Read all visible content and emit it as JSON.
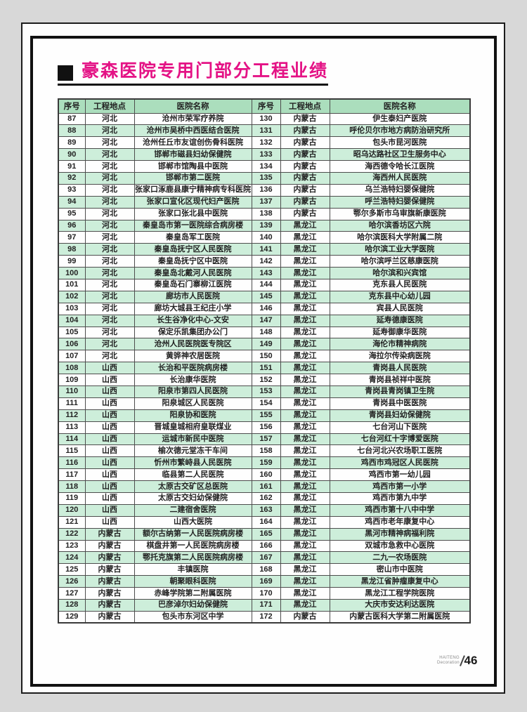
{
  "doc": {
    "title": "豪森医院专用门部分工程业绩",
    "footer": {
      "brand_top": "HAITENG",
      "brand_bottom": "Decoration",
      "page_number": "46"
    }
  },
  "colors": {
    "title": "#e41285",
    "header_bg": "#abdebd",
    "alt_row_bg": "#cdeeda",
    "frame": "#111111"
  },
  "table": {
    "headers": [
      "序号",
      "工程地点",
      "医院名称",
      "序号",
      "工程地点",
      "医院名称"
    ],
    "rows": [
      [
        "87",
        "河北",
        "沧州市荣军疗养院",
        "130",
        "内蒙古",
        "伊生泰妇产医院"
      ],
      [
        "88",
        "河北",
        "沧州市吴桥中西医结合医院",
        "131",
        "内蒙古",
        "呼伦贝尔市地方病防治研究所"
      ],
      [
        "89",
        "河北",
        "沧州任丘市友谊创伤骨科医院",
        "132",
        "内蒙古",
        "包头市昆河医院"
      ],
      [
        "90",
        "河北",
        "邯郸市磁县妇幼保健院",
        "133",
        "内蒙古",
        "昭乌达路社区卫生服务中心"
      ],
      [
        "91",
        "河北",
        "邯郸市馆陶县中医院",
        "134",
        "内蒙古",
        "海西德令哈长江医院"
      ],
      [
        "92",
        "河北",
        "邯郸市第二医院",
        "135",
        "内蒙古",
        "海西州人民医院"
      ],
      [
        "93",
        "河北",
        "张家口涿鹿县康宁精神病专科医院",
        "136",
        "内蒙古",
        "乌兰浩特妇婴保健院"
      ],
      [
        "94",
        "河北",
        "张家口宣化区现代妇产医院",
        "137",
        "内蒙古",
        "呼兰浩特妇婴保健院"
      ],
      [
        "95",
        "河北",
        "张家口张北县中医院",
        "138",
        "内蒙古",
        "鄂尔多斯市乌审旗新康医院"
      ],
      [
        "96",
        "河北",
        "秦皇岛市第一医院综合病房楼",
        "139",
        "黑龙江",
        "哈尔滨香坊区六院"
      ],
      [
        "97",
        "河北",
        "秦皇岛军工医院",
        "140",
        "黑龙江",
        "哈尔滨医科大学附属二院"
      ],
      [
        "98",
        "河北",
        "秦皇岛抚宁区人民医院",
        "141",
        "黑龙江",
        "哈尔滨工业大学医院"
      ],
      [
        "99",
        "河北",
        "秦皇岛抚宁区中医院",
        "142",
        "黑龙江",
        "哈尔滨呼兰区慈康医院"
      ],
      [
        "100",
        "河北",
        "秦皇岛北戴河人民医院",
        "143",
        "黑龙江",
        "哈尔滨和兴宾馆"
      ],
      [
        "101",
        "河北",
        "秦皇岛石门寨柳江医院",
        "144",
        "黑龙江",
        "克东县人民医院"
      ],
      [
        "102",
        "河北",
        "廊坊市人民医院",
        "145",
        "黑龙江",
        "克东县中心幼儿园"
      ],
      [
        "103",
        "河北",
        "廊坊大城县王纪庄小学",
        "146",
        "黑龙江",
        "宾县人民医院"
      ],
      [
        "104",
        "河北",
        "长生谷净化中心-文安",
        "147",
        "黑龙江",
        "延寿德康医院"
      ],
      [
        "105",
        "河北",
        "保定乐凯集团办公门",
        "148",
        "黑龙江",
        "延寿御康华医院"
      ],
      [
        "106",
        "河北",
        "沧州人民医院医专院区",
        "149",
        "黑龙江",
        "海伦市精神病院"
      ],
      [
        "107",
        "河北",
        "黄骅神农居医院",
        "150",
        "黑龙江",
        "海拉尔传染病医院"
      ],
      [
        "108",
        "山西",
        "长治和平医院病房楼",
        "151",
        "黑龙江",
        "青岗县人民医院"
      ],
      [
        "109",
        "山西",
        "长治康华医院",
        "152",
        "黑龙江",
        "青岗县祯祥中医院"
      ],
      [
        "110",
        "山西",
        "阳泉市第四人民医院",
        "153",
        "黑龙江",
        "青岗县青岗镇卫生院"
      ],
      [
        "111",
        "山西",
        "阳泉城区人民医院",
        "154",
        "黑龙江",
        "青岗县中医医院"
      ],
      [
        "112",
        "山西",
        "阳泉协和医院",
        "155",
        "黑龙江",
        "青岗县妇幼保健院"
      ],
      [
        "113",
        "山西",
        "晋城皇城相府皇联煤业",
        "156",
        "黑龙江",
        "七台河山下医院"
      ],
      [
        "114",
        "山西",
        "运城市新民中医院",
        "157",
        "黑龙江",
        "七台河红十字博爱医院"
      ],
      [
        "115",
        "山西",
        "榆次德元堂冻干车间",
        "158",
        "黑龙江",
        "七台河北兴农场职工医院"
      ],
      [
        "116",
        "山西",
        "忻州市繁峙县人民医院",
        "159",
        "黑龙江",
        "鸡西市鸡冠区人民医院"
      ],
      [
        "117",
        "山西",
        "临县第二人民医院",
        "160",
        "黑龙江",
        "鸡西市第一幼儿园"
      ],
      [
        "118",
        "山西",
        "太原古交矿区总医院",
        "161",
        "黑龙江",
        "鸡西市第一小学"
      ],
      [
        "119",
        "山西",
        "太原古交妇幼保健院",
        "162",
        "黑龙江",
        "鸡西市第九中学"
      ],
      [
        "120",
        "山西",
        "二建宿舍医院",
        "163",
        "黑龙江",
        "鸡西市第十八中中学"
      ],
      [
        "121",
        "山西",
        "山西大医院",
        "164",
        "黑龙江",
        "鸡西市老年康复中心"
      ],
      [
        "122",
        "内蒙古",
        "额尔古纳第一人民医院病房楼",
        "165",
        "黑龙江",
        "黑河市精神病福利院"
      ],
      [
        "123",
        "内蒙古",
        "棋盘井第一人民医院病房楼",
        "166",
        "黑龙江",
        "双城市急救中心医院"
      ],
      [
        "124",
        "内蒙古",
        "鄂托克旗第二人民医院病房楼",
        "167",
        "黑龙江",
        "二九一农场医院"
      ],
      [
        "125",
        "内蒙古",
        "丰镇医院",
        "168",
        "黑龙江",
        "密山市中医院"
      ],
      [
        "126",
        "内蒙古",
        "朝聚眼科医院",
        "169",
        "黑龙江",
        "黑龙江省肿瘤康复中心"
      ],
      [
        "127",
        "内蒙古",
        "赤峰学院第二附属医院",
        "170",
        "黑龙江",
        "黑龙江工程学院医院"
      ],
      [
        "128",
        "内蒙古",
        "巴彦淖尔妇幼保健院",
        "171",
        "黑龙江",
        "大庆市安达利达医院"
      ],
      [
        "129",
        "内蒙古",
        "包头市东河区中学",
        "172",
        "内蒙古",
        "内蒙古医科大学第二附属医院"
      ]
    ]
  }
}
